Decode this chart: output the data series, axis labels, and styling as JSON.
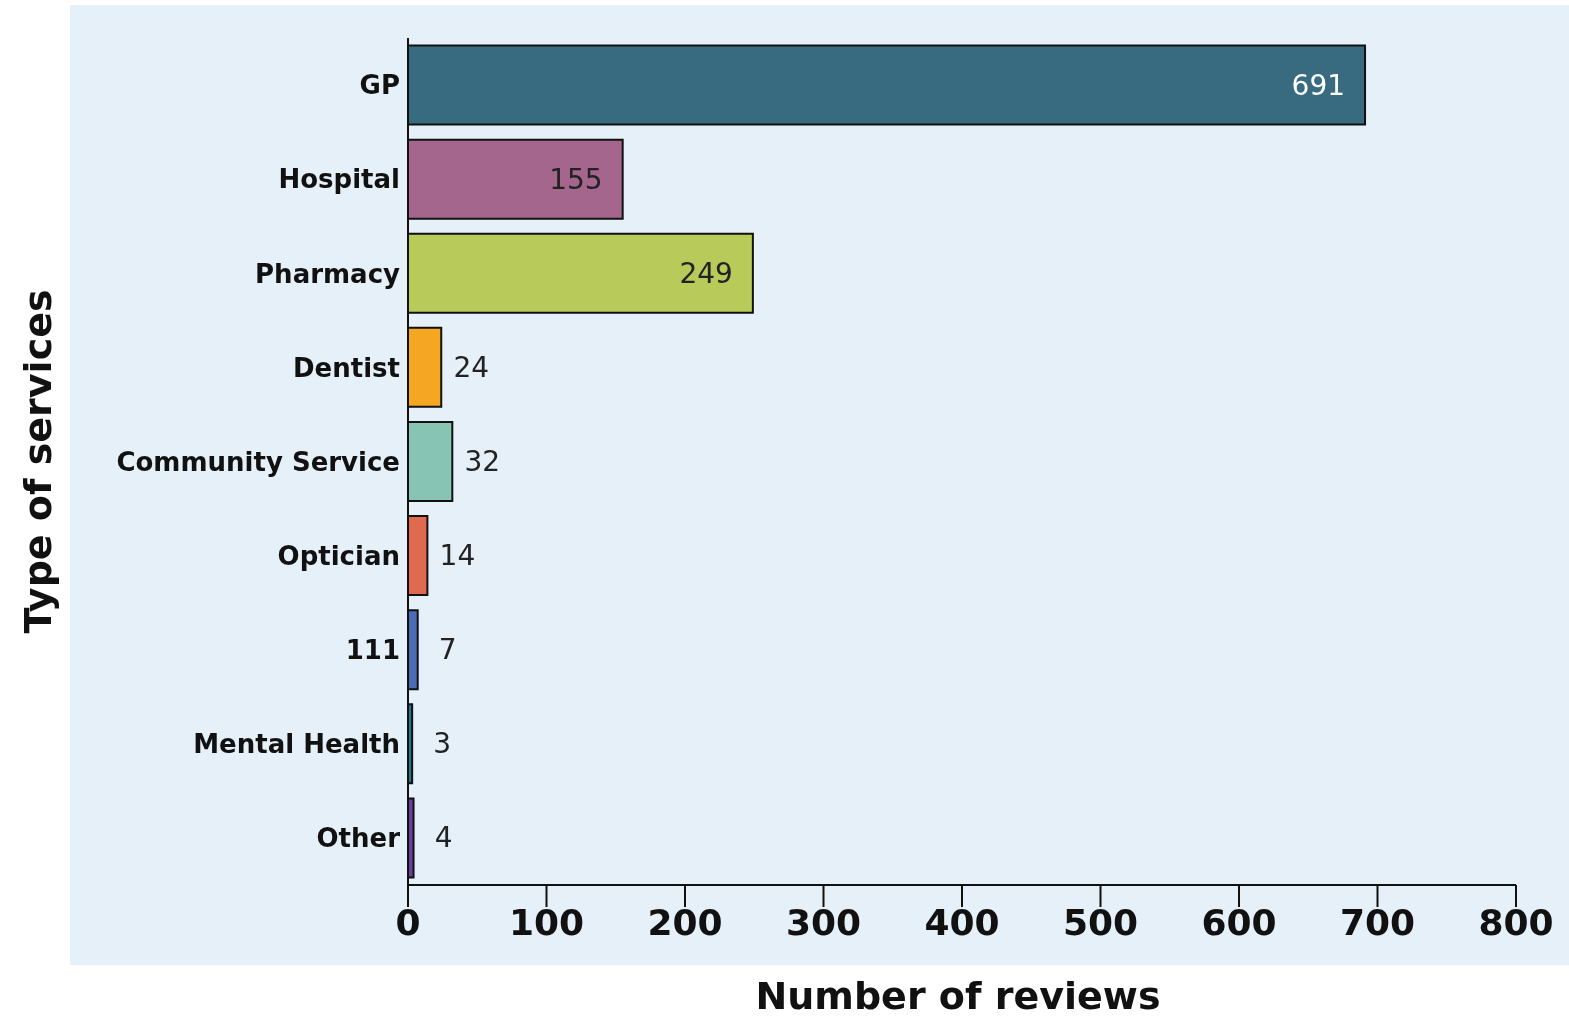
{
  "chart_data": {
    "type": "bar",
    "orientation": "horizontal",
    "xlabel": "Number of reviews",
    "ylabel": "Type of services",
    "categories": [
      "GP",
      "Hospital",
      "Pharmacy",
      "Dentist",
      "Community Service",
      "Optician",
      "111",
      "Mental Health",
      "Other"
    ],
    "values": [
      691,
      155,
      249,
      24,
      32,
      14,
      7,
      3,
      4
    ],
    "colors": [
      "#396b80",
      "#a5668e",
      "#b8cb5a",
      "#f5a623",
      "#88c4b4",
      "#e06a50",
      "#4a6db5",
      "#1f7a8c",
      "#6b3fa0"
    ],
    "xlim": [
      0,
      800
    ],
    "xticks": [
      0,
      100,
      200,
      300,
      400,
      500,
      600,
      700,
      800
    ],
    "data_labels": true,
    "grid": false,
    "legend": false
  }
}
